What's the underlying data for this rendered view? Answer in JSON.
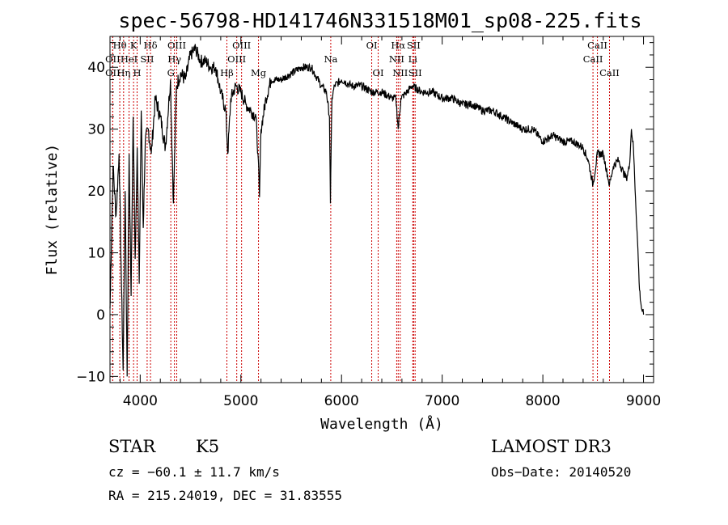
{
  "chart_data": {
    "type": "line",
    "title": "spec-56798-HD141746N331518M01_sp08-225.fits",
    "xlabel": "Wavelength (Å)",
    "ylabel": "Flux (relative)",
    "xlim": [
      3700,
      9100
    ],
    "ylim": [
      -11,
      45
    ],
    "x_ticks": [
      4000,
      5000,
      6000,
      7000,
      8000,
      9000
    ],
    "y_ticks": [
      -10,
      0,
      10,
      20,
      30,
      40
    ],
    "spectrum": {
      "name": "flux",
      "x": [
        3700,
        3730,
        3760,
        3790,
        3810,
        3830,
        3850,
        3870,
        3890,
        3910,
        3930,
        3950,
        3970,
        3990,
        4010,
        4030,
        4050,
        4080,
        4110,
        4150,
        4200,
        4250,
        4300,
        4330,
        4360,
        4400,
        4450,
        4500,
        4550,
        4600,
        4650,
        4700,
        4750,
        4800,
        4850,
        4870,
        4900,
        4950,
        5000,
        5050,
        5100,
        5150,
        5170,
        5185,
        5200,
        5250,
        5300,
        5400,
        5500,
        5600,
        5700,
        5800,
        5850,
        5880,
        5890,
        5896,
        5905,
        5930,
        6000,
        6100,
        6200,
        6300,
        6400,
        6500,
        6540,
        6563,
        6590,
        6650,
        6700,
        6800,
        6900,
        7000,
        7100,
        7200,
        7300,
        7400,
        7500,
        7600,
        7700,
        7800,
        7900,
        8000,
        8100,
        8200,
        8300,
        8400,
        8450,
        8498,
        8542,
        8600,
        8662,
        8700,
        8750,
        8800,
        8830,
        8860,
        8880,
        8900,
        8920,
        8940,
        8960,
        8980,
        9000
      ],
      "y": [
        1,
        24,
        16,
        26,
        8,
        -9,
        20,
        -10,
        26,
        3,
        32,
        9,
        27,
        5,
        33,
        14,
        28,
        30,
        26,
        35,
        32,
        27,
        38,
        18,
        37,
        39,
        38,
        42,
        43,
        41,
        41,
        40,
        40,
        36,
        33,
        26,
        35,
        37,
        36,
        34,
        33,
        32,
        26,
        19,
        30,
        35,
        38,
        38,
        39,
        40,
        40,
        37,
        36,
        32,
        18,
        26,
        35,
        37,
        38,
        37,
        37,
        36,
        36,
        35,
        35,
        30,
        35,
        36,
        37,
        36,
        36,
        35,
        35,
        34,
        34,
        33,
        33,
        32,
        31,
        30,
        30,
        28,
        29,
        28,
        28,
        27,
        25,
        21,
        26,
        26,
        21,
        24,
        25,
        23,
        22,
        24,
        30,
        27,
        19,
        12,
        4,
        1,
        0
      ]
    },
    "line_markers": [
      {
        "wavelength": 3797,
        "label": "Hθ",
        "row": 0
      },
      {
        "wavelength": 3727,
        "label": "OII",
        "row": 1
      },
      {
        "wavelength": 3727,
        "label": "OII",
        "row": 2
      },
      {
        "wavelength": 3835,
        "label": "Hη",
        "row": 2
      },
      {
        "wavelength": 3889,
        "label": "HeI",
        "row": 1
      },
      {
        "wavelength": 3934,
        "label": "K",
        "row": 0
      },
      {
        "wavelength": 3969,
        "label": "H",
        "row": 2
      },
      {
        "wavelength": 4069,
        "label": "SII",
        "row": 1
      },
      {
        "wavelength": 4102,
        "label": "Hδ",
        "row": 0
      },
      {
        "wavelength": 4340,
        "label": "Hγ",
        "row": 1
      },
      {
        "wavelength": 4363,
        "label": "OIII",
        "row": 0
      },
      {
        "wavelength": 4304,
        "label": "G",
        "row": 2
      },
      {
        "wavelength": 4861,
        "label": "Hβ",
        "row": 2
      },
      {
        "wavelength": 4959,
        "label": "OIII",
        "row": 1
      },
      {
        "wavelength": 5007,
        "label": "OIII",
        "row": 0
      },
      {
        "wavelength": 5175,
        "label": "Mg",
        "row": 2
      },
      {
        "wavelength": 5893,
        "label": "Na",
        "row": 1
      },
      {
        "wavelength": 6300,
        "label": "OI",
        "row": 0
      },
      {
        "wavelength": 6364,
        "label": "OI",
        "row": 2
      },
      {
        "wavelength": 6548,
        "label": "NII",
        "row": 1
      },
      {
        "wavelength": 6563,
        "label": "Hα",
        "row": 0
      },
      {
        "wavelength": 6583,
        "label": "NII",
        "row": 2
      },
      {
        "wavelength": 6708,
        "label": "Li",
        "row": 1
      },
      {
        "wavelength": 6716,
        "label": "SII",
        "row": 0
      },
      {
        "wavelength": 6731,
        "label": "SII",
        "row": 2
      },
      {
        "wavelength": 8498,
        "label": "CaII",
        "row": 1
      },
      {
        "wavelength": 8542,
        "label": "CaII",
        "row": 0
      },
      {
        "wavelength": 8662,
        "label": "CaII",
        "row": 2
      }
    ]
  },
  "info": {
    "class": "STAR",
    "subclass": "K5",
    "survey": "LAMOST DR3",
    "cz": "cz = −60.1 ± 11.7 km/s",
    "obs_date": "Obs−Date: 20140520",
    "coords": "RA = 215.24019, DEC =  31.83555"
  },
  "colors": {
    "spectrum": "#000000",
    "marker_line": "#cc0000",
    "axes": "#000000"
  }
}
